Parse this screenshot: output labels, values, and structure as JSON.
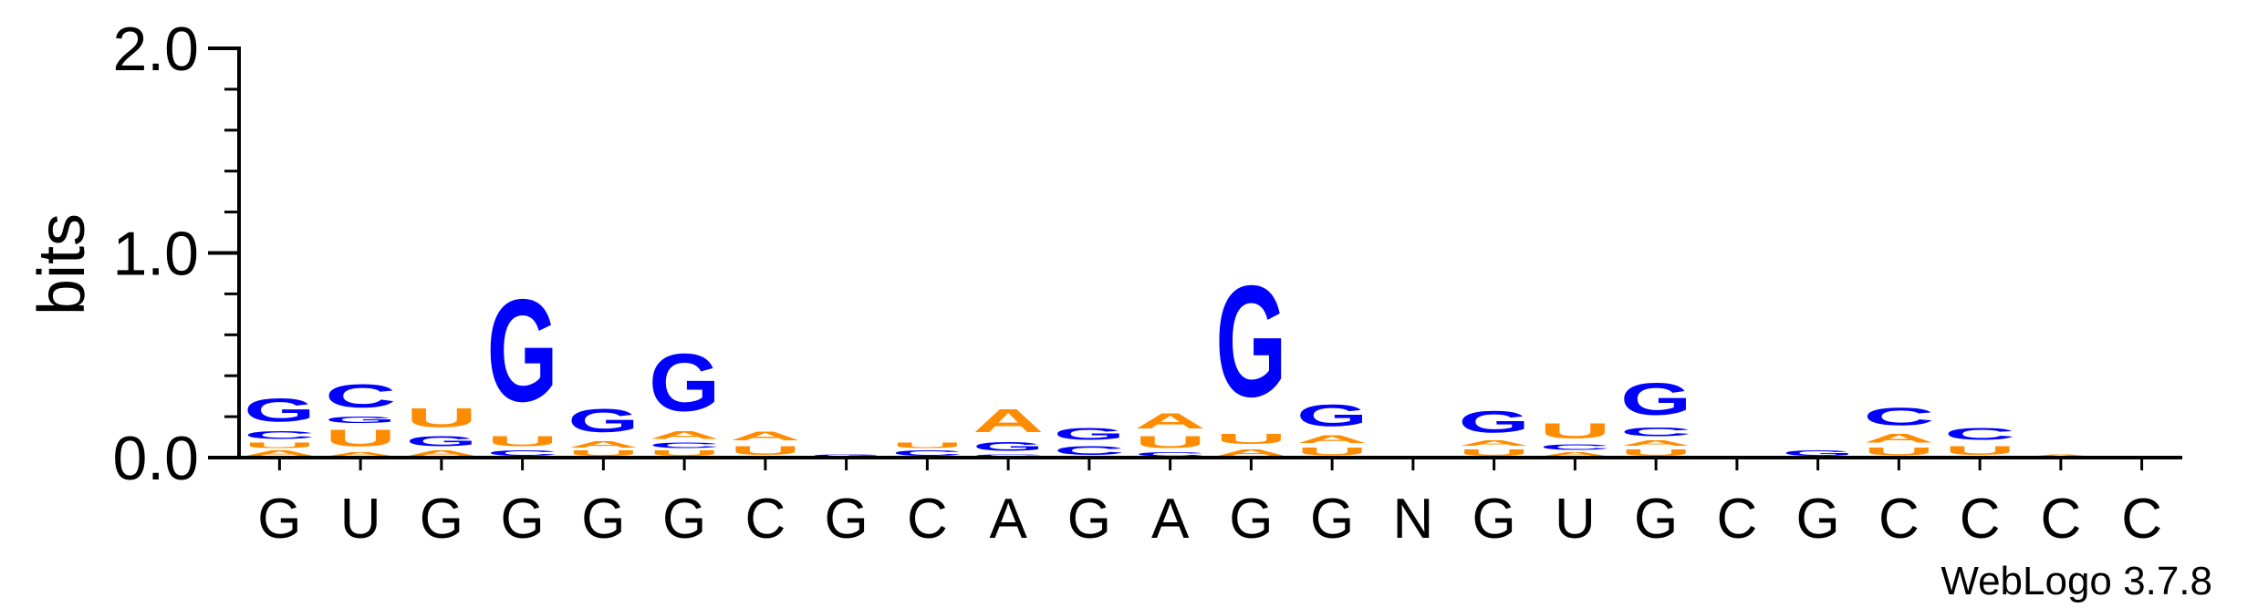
{
  "chart_data": {
    "type": "sequence-logo",
    "ylabel": "bits",
    "ylim": [
      0,
      2.0
    ],
    "yticks": [
      {
        "value": 0.0,
        "label": "0.0"
      },
      {
        "value": 1.0,
        "label": "1.0"
      },
      {
        "value": 2.0,
        "label": "2.0"
      }
    ],
    "minor_tick_step": 0.2,
    "consensus": [
      "G",
      "U",
      "G",
      "G",
      "G",
      "G",
      "C",
      "G",
      "C",
      "A",
      "G",
      "A",
      "G",
      "G",
      "N",
      "G",
      "U",
      "G",
      "C",
      "G",
      "C",
      "C",
      "C",
      "C"
    ],
    "colors": {
      "G": "#0000ff",
      "C": "#0000ff",
      "A": "#ff8c00",
      "U": "#ff8c00"
    },
    "positions": [
      [
        {
          "b": "A",
          "h": 0.04
        },
        {
          "b": "U",
          "h": 0.04
        },
        {
          "b": "C",
          "h": 0.06
        },
        {
          "b": "G",
          "h": 0.18
        }
      ],
      [
        {
          "b": "A",
          "h": 0.03
        },
        {
          "b": "U",
          "h": 0.13
        },
        {
          "b": "G",
          "h": 0.05
        },
        {
          "b": "C",
          "h": 0.18
        }
      ],
      [
        {
          "b": "A",
          "h": 0.04
        },
        {
          "b": "G",
          "h": 0.08
        },
        {
          "b": "U",
          "h": 0.15
        }
      ],
      [
        {
          "b": "C",
          "h": 0.04
        },
        {
          "b": "U",
          "h": 0.08
        },
        {
          "b": "G",
          "h": 0.8
        }
      ],
      [
        {
          "b": "U",
          "h": 0.04
        },
        {
          "b": "A",
          "h": 0.05
        },
        {
          "b": "G",
          "h": 0.18
        }
      ],
      [
        {
          "b": "U",
          "h": 0.04
        },
        {
          "b": "C",
          "h": 0.04
        },
        {
          "b": "A",
          "h": 0.06
        },
        {
          "b": "G",
          "h": 0.45
        }
      ],
      [
        {
          "b": "U",
          "h": 0.07
        },
        {
          "b": "A",
          "h": 0.07
        }
      ],
      [
        {
          "b": "G",
          "h": 0.02
        }
      ],
      [
        {
          "b": "C",
          "h": 0.04
        },
        {
          "b": "U",
          "h": 0.04
        }
      ],
      [
        {
          "b": "C",
          "h": 0.02
        },
        {
          "b": "G",
          "h": 0.07
        },
        {
          "b": "A",
          "h": 0.18
        }
      ],
      [
        {
          "b": "C",
          "h": 0.07
        },
        {
          "b": "G",
          "h": 0.09
        }
      ],
      [
        {
          "b": "C",
          "h": 0.03
        },
        {
          "b": "U",
          "h": 0.09
        },
        {
          "b": "A",
          "h": 0.12
        }
      ],
      [
        {
          "b": "A",
          "h": 0.05
        },
        {
          "b": "U",
          "h": 0.08
        },
        {
          "b": "G",
          "h": 0.87
        }
      ],
      [
        {
          "b": "U",
          "h": 0.06
        },
        {
          "b": "A",
          "h": 0.06
        },
        {
          "b": "G",
          "h": 0.17
        }
      ],
      [],
      [
        {
          "b": "U",
          "h": 0.05
        },
        {
          "b": "A",
          "h": 0.04
        },
        {
          "b": "G",
          "h": 0.17
        }
      ],
      [
        {
          "b": "A",
          "h": 0.03
        },
        {
          "b": "C",
          "h": 0.04
        },
        {
          "b": "U",
          "h": 0.12
        }
      ],
      [
        {
          "b": "U",
          "h": 0.05
        },
        {
          "b": "A",
          "h": 0.04
        },
        {
          "b": "C",
          "h": 0.07
        },
        {
          "b": "G",
          "h": 0.25
        }
      ],
      [],
      [
        {
          "b": "G",
          "h": 0.04
        }
      ],
      [
        {
          "b": "U",
          "h": 0.06
        },
        {
          "b": "A",
          "h": 0.07
        },
        {
          "b": "C",
          "h": 0.14
        }
      ],
      [
        {
          "b": "U",
          "h": 0.07
        },
        {
          "b": "C",
          "h": 0.09
        }
      ],
      [
        {
          "b": "A",
          "h": 0.02
        }
      ],
      []
    ]
  },
  "footer": {
    "credit": "WebLogo 3.7.8"
  }
}
